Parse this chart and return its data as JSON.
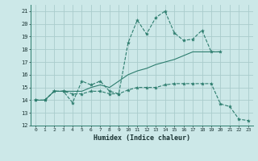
{
  "background_color": "#cce8e8",
  "grid_color": "#aacccc",
  "line_color": "#2d7d6e",
  "xlabel": "Humidex (Indice chaleur)",
  "xlim": [
    -0.5,
    23.5
  ],
  "ylim": [
    12,
    21.5
  ],
  "xticks": [
    0,
    1,
    2,
    3,
    4,
    5,
    6,
    7,
    8,
    9,
    10,
    11,
    12,
    13,
    14,
    15,
    16,
    17,
    18,
    19,
    20,
    21,
    22,
    23
  ],
  "yticks": [
    12,
    13,
    14,
    15,
    16,
    17,
    18,
    19,
    20,
    21
  ],
  "line1_x": [
    0,
    1,
    2,
    3,
    4,
    5,
    6,
    7,
    8,
    9,
    10,
    11,
    12,
    13,
    14,
    15,
    16,
    17,
    18,
    19,
    20
  ],
  "line1_y": [
    14.0,
    14.0,
    14.7,
    14.7,
    13.8,
    15.5,
    15.2,
    15.5,
    14.7,
    14.5,
    18.5,
    20.3,
    19.2,
    20.5,
    21.0,
    19.3,
    18.7,
    18.8,
    19.5,
    17.8,
    17.8
  ],
  "line2_x": [
    0,
    1,
    2,
    3,
    4,
    5,
    6,
    7,
    8,
    9,
    10,
    11,
    12,
    13,
    14,
    15,
    16,
    17,
    18,
    19,
    20
  ],
  "line2_y": [
    14.0,
    14.0,
    14.7,
    14.7,
    14.7,
    14.7,
    15.0,
    15.2,
    15.0,
    15.5,
    16.0,
    16.3,
    16.5,
    16.8,
    17.0,
    17.2,
    17.5,
    17.8,
    17.8,
    17.8,
    17.8
  ],
  "line3_x": [
    0,
    1,
    2,
    3,
    4,
    5,
    6,
    7,
    8,
    9,
    10,
    11,
    12,
    13,
    14,
    15,
    16,
    17,
    18,
    19,
    20,
    21,
    22,
    23
  ],
  "line3_y": [
    14.0,
    14.0,
    14.7,
    14.7,
    14.5,
    14.5,
    14.7,
    14.7,
    14.5,
    14.5,
    14.8,
    15.0,
    15.0,
    15.0,
    15.2,
    15.3,
    15.3,
    15.3,
    15.3,
    15.3,
    13.7,
    13.5,
    12.5,
    12.4
  ]
}
